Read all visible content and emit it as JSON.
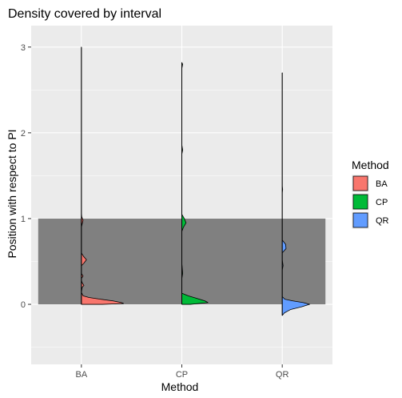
{
  "chart_data": {
    "type": "violin",
    "title": "Density covered by interval",
    "xlabel": "Method",
    "ylabel": "Position with respect to PI",
    "categories": [
      "BA",
      "CP",
      "QR"
    ],
    "ylim": [
      -0.7,
      3.25
    ],
    "yticks": [
      0,
      1,
      2,
      3
    ],
    "grid": true,
    "legend": {
      "title": "Method",
      "placement": "right",
      "entries": [
        "BA",
        "CP",
        "QR"
      ]
    },
    "colors": {
      "BA": "#F8766D",
      "CP": "#00BA38",
      "QR": "#619CFF",
      "panel_bg": "#EBEBEB",
      "grid": "#FFFFFF",
      "band": "#808080"
    },
    "interval_band": {
      "ymin": 0,
      "ymax": 1
    },
    "series": [
      {
        "name": "BA",
        "range": [
          0,
          3.0
        ],
        "density": [
          [
            0,
            0.5
          ],
          [
            0.01,
            1.0
          ],
          [
            0.02,
            0.95
          ],
          [
            0.04,
            0.75
          ],
          [
            0.06,
            0.45
          ],
          [
            0.08,
            0.18
          ],
          [
            0.1,
            0.04
          ],
          [
            0.14,
            0.0
          ],
          [
            0.2,
            0.02
          ],
          [
            0.22,
            0.06
          ],
          [
            0.25,
            0.02
          ],
          [
            0.28,
            0.0
          ],
          [
            0.3,
            0.0
          ],
          [
            0.33,
            0.04
          ],
          [
            0.36,
            0.0
          ],
          [
            0.45,
            0.0
          ],
          [
            0.48,
            0.06
          ],
          [
            0.52,
            0.12
          ],
          [
            0.56,
            0.05
          ],
          [
            0.6,
            0.0
          ],
          [
            0.9,
            0.0
          ],
          [
            0.94,
            0.02
          ],
          [
            0.98,
            0.04
          ],
          [
            1.02,
            0.01
          ],
          [
            1.06,
            0.0
          ],
          [
            3.0,
            0.0
          ]
        ]
      },
      {
        "name": "CP",
        "range": [
          0,
          2.82
        ],
        "density": [
          [
            0,
            0.2
          ],
          [
            0.02,
            0.62
          ],
          [
            0.04,
            0.55
          ],
          [
            0.07,
            0.35
          ],
          [
            0.1,
            0.15
          ],
          [
            0.13,
            0.0
          ],
          [
            0.3,
            0.0
          ],
          [
            0.36,
            0.02
          ],
          [
            0.42,
            0.01
          ],
          [
            0.48,
            0.0
          ],
          [
            0.85,
            0.0
          ],
          [
            0.9,
            0.04
          ],
          [
            0.95,
            0.1
          ],
          [
            1.0,
            0.06
          ],
          [
            1.05,
            0.0
          ],
          [
            1.75,
            0.0
          ],
          [
            1.8,
            0.02
          ],
          [
            1.86,
            0.0
          ],
          [
            2.75,
            0.0
          ],
          [
            2.8,
            0.02
          ],
          [
            2.82,
            0.0
          ]
        ]
      },
      {
        "name": "QR",
        "range": [
          -0.13,
          2.7
        ],
        "density": [
          [
            -0.13,
            0.0
          ],
          [
            -0.1,
            0.05
          ],
          [
            -0.06,
            0.2
          ],
          [
            -0.03,
            0.45
          ],
          [
            0,
            0.65
          ],
          [
            0.02,
            0.5
          ],
          [
            0.04,
            0.25
          ],
          [
            0.06,
            0.06
          ],
          [
            0.09,
            0.0
          ],
          [
            0.4,
            0.0
          ],
          [
            0.45,
            0.02
          ],
          [
            0.52,
            0.0
          ],
          [
            0.6,
            0.0
          ],
          [
            0.65,
            0.09
          ],
          [
            0.7,
            0.08
          ],
          [
            0.75,
            0.0
          ],
          [
            1.3,
            0.0
          ],
          [
            1.34,
            0.01
          ],
          [
            1.38,
            0.0
          ],
          [
            2.7,
            0.0
          ]
        ]
      }
    ]
  }
}
